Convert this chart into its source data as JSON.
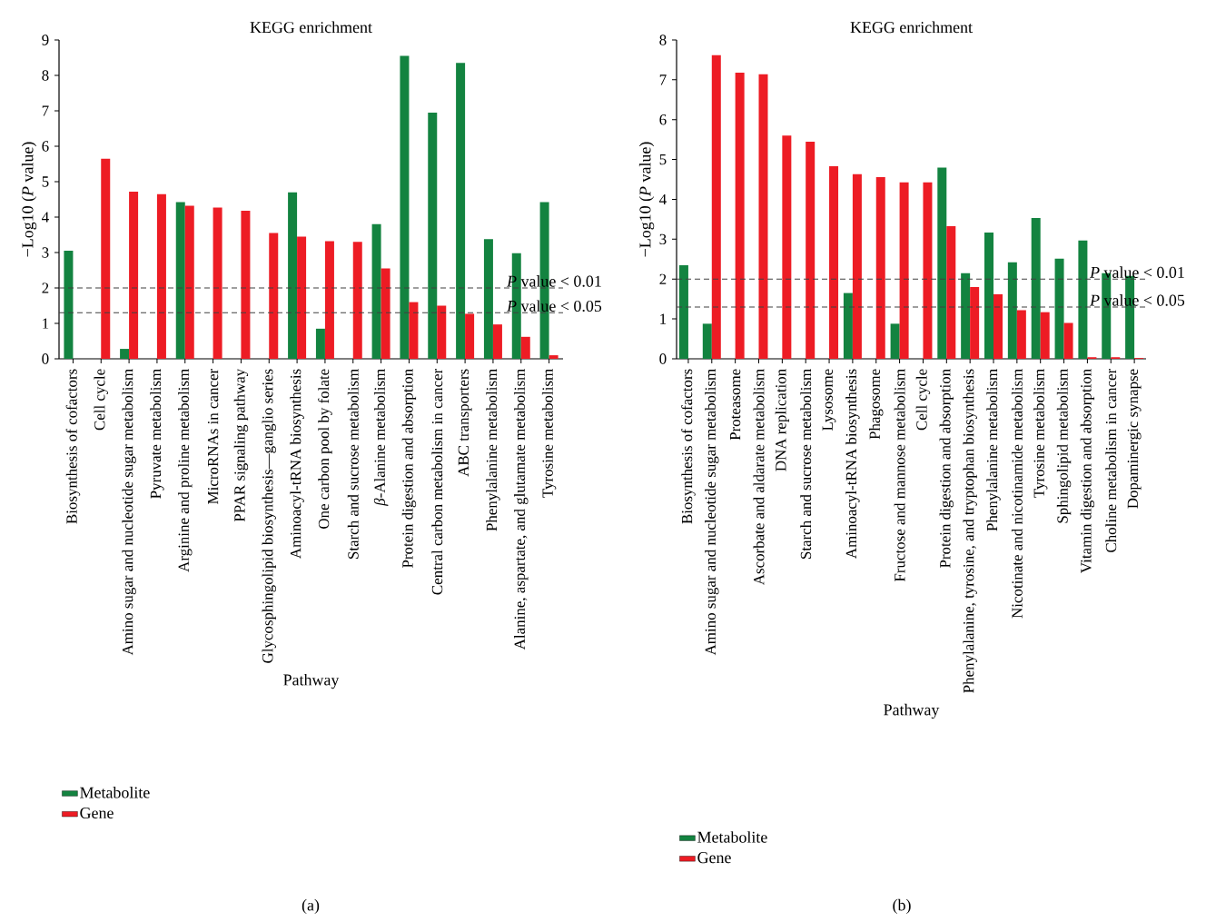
{
  "chart_data": [
    {
      "type": "bar",
      "title": "KEGG enrichment",
      "xlabel": "Pathway",
      "ylabel": "−Log10 (*P* value)",
      "categories": [
        "Biosynthesis of cofactors",
        "Cell cycle",
        "Amino sugar and nucleotide sugar metabolism",
        "Pyruvate metabolism",
        "Arginine and proline metabolism",
        "MicroRNAs in cancer",
        "PPAR signaling pathway",
        "Glycosphingolipid biosynthesis—ganglio series",
        "Aminoacyl-tRNA biosynthesis",
        "One carbon pool by folate",
        "Starch and sucrose metabolism",
        "*β*-Alanine metabolism",
        "Protein digestion and absorption",
        "Central carbon metabolism in cancer",
        "ABC transporters",
        "Phenylalanine metabolism",
        "Alanine, aspartate, and glutamate metabolism",
        "Tyrosine metabolism"
      ],
      "series": [
        {
          "name": "Metabolite",
          "color": "#138340",
          "values": [
            3.05,
            null,
            0.28,
            null,
            4.42,
            null,
            null,
            null,
            4.7,
            0.85,
            null,
            3.8,
            8.55,
            6.95,
            8.35,
            3.38,
            2.98,
            4.42
          ]
        },
        {
          "name": "Gene",
          "color": "#ed1c24",
          "values": [
            null,
            5.65,
            4.72,
            4.65,
            4.32,
            4.27,
            4.18,
            3.55,
            3.45,
            3.32,
            3.3,
            2.55,
            1.6,
            1.5,
            1.27,
            0.97,
            0.62,
            0.1
          ]
        }
      ],
      "ylim": [
        0,
        9
      ],
      "yticks": [
        0,
        1,
        2,
        3,
        4,
        5,
        6,
        7,
        8,
        9
      ],
      "ref_lines": [
        {
          "axis": "y",
          "value": 2,
          "label": "*P* value < 0.01",
          "line_style": "dashed",
          "color": "#404040"
        },
        {
          "axis": "y",
          "value": 1.3,
          "label": "*P* value < 0.05",
          "line_style": "dashed",
          "color": "#404040"
        }
      ],
      "legend": "bottom left",
      "annotations": [
        "(a)"
      ]
    },
    {
      "type": "bar",
      "title": "KEGG enrichment",
      "xlabel": "Pathway",
      "ylabel": "−Log10 (*P* value)",
      "categories": [
        "Biosynthesis of cofactors",
        "Amino sugar and nucleotide sugar metabolism",
        "Proteasome",
        "Ascorbate and aldarate metabolism",
        "DNA replication",
        "Starch and sucrose metabolism",
        "Lysosome",
        "Aminoacyl-tRNA biosynthesis",
        "Phagosome",
        "Fructose and mannose metabolism",
        "Cell cycle",
        "Protein digestion and absorption",
        "Phenylalanine, tyrosine, and tryptophan biosynthesis",
        "Phenylalanine metabolism",
        "Nicotinate and nicotinamide metabolism",
        "Tyrosine metabolism",
        "Sphingolipid metabolism",
        "Vitamin digestion and absorption",
        "Choline metabolism in cancer",
        "Dopaminergic synapse"
      ],
      "series": [
        {
          "name": "Metabolite",
          "color": "#138340",
          "values": [
            2.35,
            0.88,
            null,
            null,
            null,
            null,
            null,
            1.65,
            null,
            0.88,
            null,
            4.8,
            2.15,
            3.17,
            2.42,
            3.53,
            2.51,
            2.97,
            2.15,
            2.08
          ]
        },
        {
          "name": "Gene",
          "color": "#ed1c24",
          "values": [
            null,
            7.62,
            7.18,
            7.14,
            5.6,
            5.45,
            4.83,
            4.63,
            4.56,
            4.43,
            4.43,
            3.33,
            1.8,
            1.62,
            1.22,
            1.17,
            0.9,
            0.04,
            0.04,
            0.02
          ]
        }
      ],
      "ylim": [
        0,
        8
      ],
      "yticks": [
        0,
        1,
        2,
        3,
        4,
        5,
        6,
        7,
        8
      ],
      "ref_lines": [
        {
          "axis": "y",
          "value": 2,
          "label": "*P* value < 0.01",
          "line_style": "dashed",
          "color": "#404040"
        },
        {
          "axis": "y",
          "value": 1.3,
          "label": "*P* value < 0.05",
          "line_style": "dashed",
          "color": "#404040"
        }
      ],
      "legend": "bottom left",
      "annotations": [
        "(b)"
      ]
    }
  ]
}
